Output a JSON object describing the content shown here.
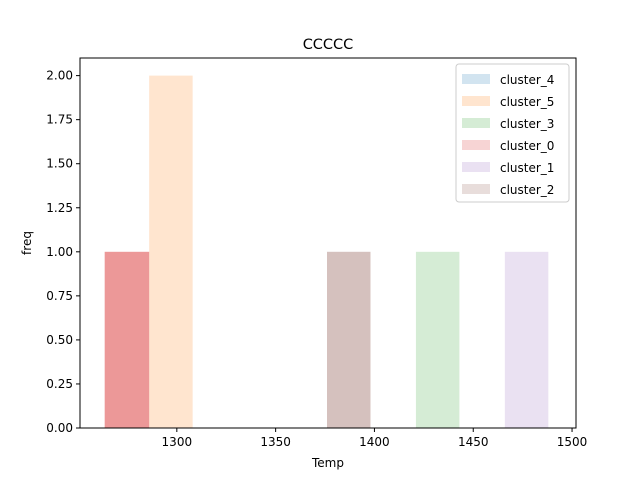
{
  "chart_data": {
    "type": "bar",
    "title": "CCCCC",
    "xlabel": "Temp",
    "ylabel": "freq",
    "xlim": [
      1251,
      1502
    ],
    "ylim": [
      0,
      2.1
    ],
    "xticks": [
      {
        "value": 1300,
        "label": "1300"
      },
      {
        "value": 1350,
        "label": "1350"
      },
      {
        "value": 1400,
        "label": "1400"
      },
      {
        "value": 1450,
        "label": "1450"
      },
      {
        "value": 1500,
        "label": "1500"
      }
    ],
    "yticks": [
      {
        "value": 0.0,
        "label": "0.00"
      },
      {
        "value": 0.25,
        "label": "0.25"
      },
      {
        "value": 0.5,
        "label": "0.50"
      },
      {
        "value": 0.75,
        "label": "0.75"
      },
      {
        "value": 1.0,
        "label": "1.00"
      },
      {
        "value": 1.25,
        "label": "1.25"
      },
      {
        "value": 1.5,
        "label": "1.50"
      },
      {
        "value": 1.75,
        "label": "1.75"
      },
      {
        "value": 2.0,
        "label": "2.00"
      }
    ],
    "grid": false,
    "legend_position": "top-right",
    "series": [
      {
        "name": "cluster_4",
        "color": "#1f77b4",
        "bars": []
      },
      {
        "name": "cluster_5",
        "color": "#ff7f0e",
        "bars": [
          {
            "x0": 1286,
            "x1": 1308,
            "value": 2
          }
        ]
      },
      {
        "name": "cluster_3",
        "color": "#2ca02c",
        "bars": [
          {
            "x0": 1421,
            "x1": 1443,
            "value": 1
          }
        ]
      },
      {
        "name": "cluster_0",
        "color": "#d62728",
        "bars": [
          {
            "x0": 1263.5,
            "x1": 1286,
            "value": 1
          }
        ]
      },
      {
        "name": "cluster_1",
        "color": "#9467bd",
        "bars": [
          {
            "x0": 1466,
            "x1": 1488,
            "value": 1
          }
        ]
      },
      {
        "name": "cluster_2",
        "color": "#8c564b",
        "bars": [
          {
            "x0": 1376,
            "x1": 1398,
            "value": 1
          }
        ]
      }
    ],
    "bar_opacity": 0.2,
    "overlay": [
      {
        "series": "cluster_0",
        "x0": 1263.5,
        "x1": 1286,
        "value": 1,
        "color": "#d62728",
        "opacity": 0.35
      },
      {
        "series": "cluster_2",
        "x0": 1376,
        "x1": 1398,
        "value": 1,
        "color": "#8c564b",
        "opacity": 0.2
      }
    ]
  }
}
